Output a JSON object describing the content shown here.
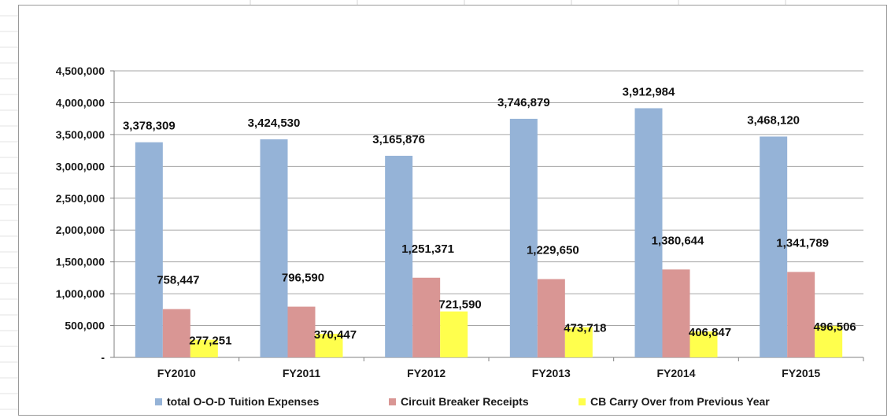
{
  "chart_data": {
    "type": "bar",
    "categories": [
      "FY2010",
      "FY2011",
      "FY2012",
      "FY2013",
      "FY2014",
      "FY2015"
    ],
    "series": [
      {
        "name": "total O-O-D Tuition Expenses",
        "color": "#95B3D7",
        "values": [
          3378309,
          3424530,
          3165876,
          3746879,
          3912984,
          3468120
        ],
        "labels": [
          "3,378,309",
          "3,424,530",
          "3,165,876",
          "3,746,879",
          "3,912,984",
          "3,468,120"
        ]
      },
      {
        "name": "Circuit Breaker Receipts",
        "color": "#D99694",
        "values": [
          758447,
          796590,
          1251371,
          1229650,
          1380644,
          1341789
        ],
        "labels": [
          "758,447",
          "796,590",
          "1,251,371",
          "1,229,650",
          "1,380,644",
          "1,341,789"
        ]
      },
      {
        "name": "CB Carry Over from Previous Year",
        "color": "#FFFF4D",
        "values": [
          277251,
          370447,
          721590,
          473718,
          406847,
          496506
        ],
        "labels": [
          "277,251",
          "370,447",
          "721,590",
          "473,718",
          "406,847",
          "496,506"
        ]
      }
    ],
    "yticks": [
      0,
      500000,
      1000000,
      1500000,
      2000000,
      2500000,
      3000000,
      3500000,
      4000000,
      4500000
    ],
    "ytick_labels": [
      "-",
      "500,000",
      "1,000,000",
      "1,500,000",
      "2,000,000",
      "2,500,000",
      "3,000,000",
      "3,500,000",
      "4,000,000",
      "4,500,000"
    ],
    "ylim": [
      0,
      4500000
    ],
    "grid": true,
    "legend": "bottom",
    "title": "",
    "xlabel": "",
    "ylabel": ""
  }
}
